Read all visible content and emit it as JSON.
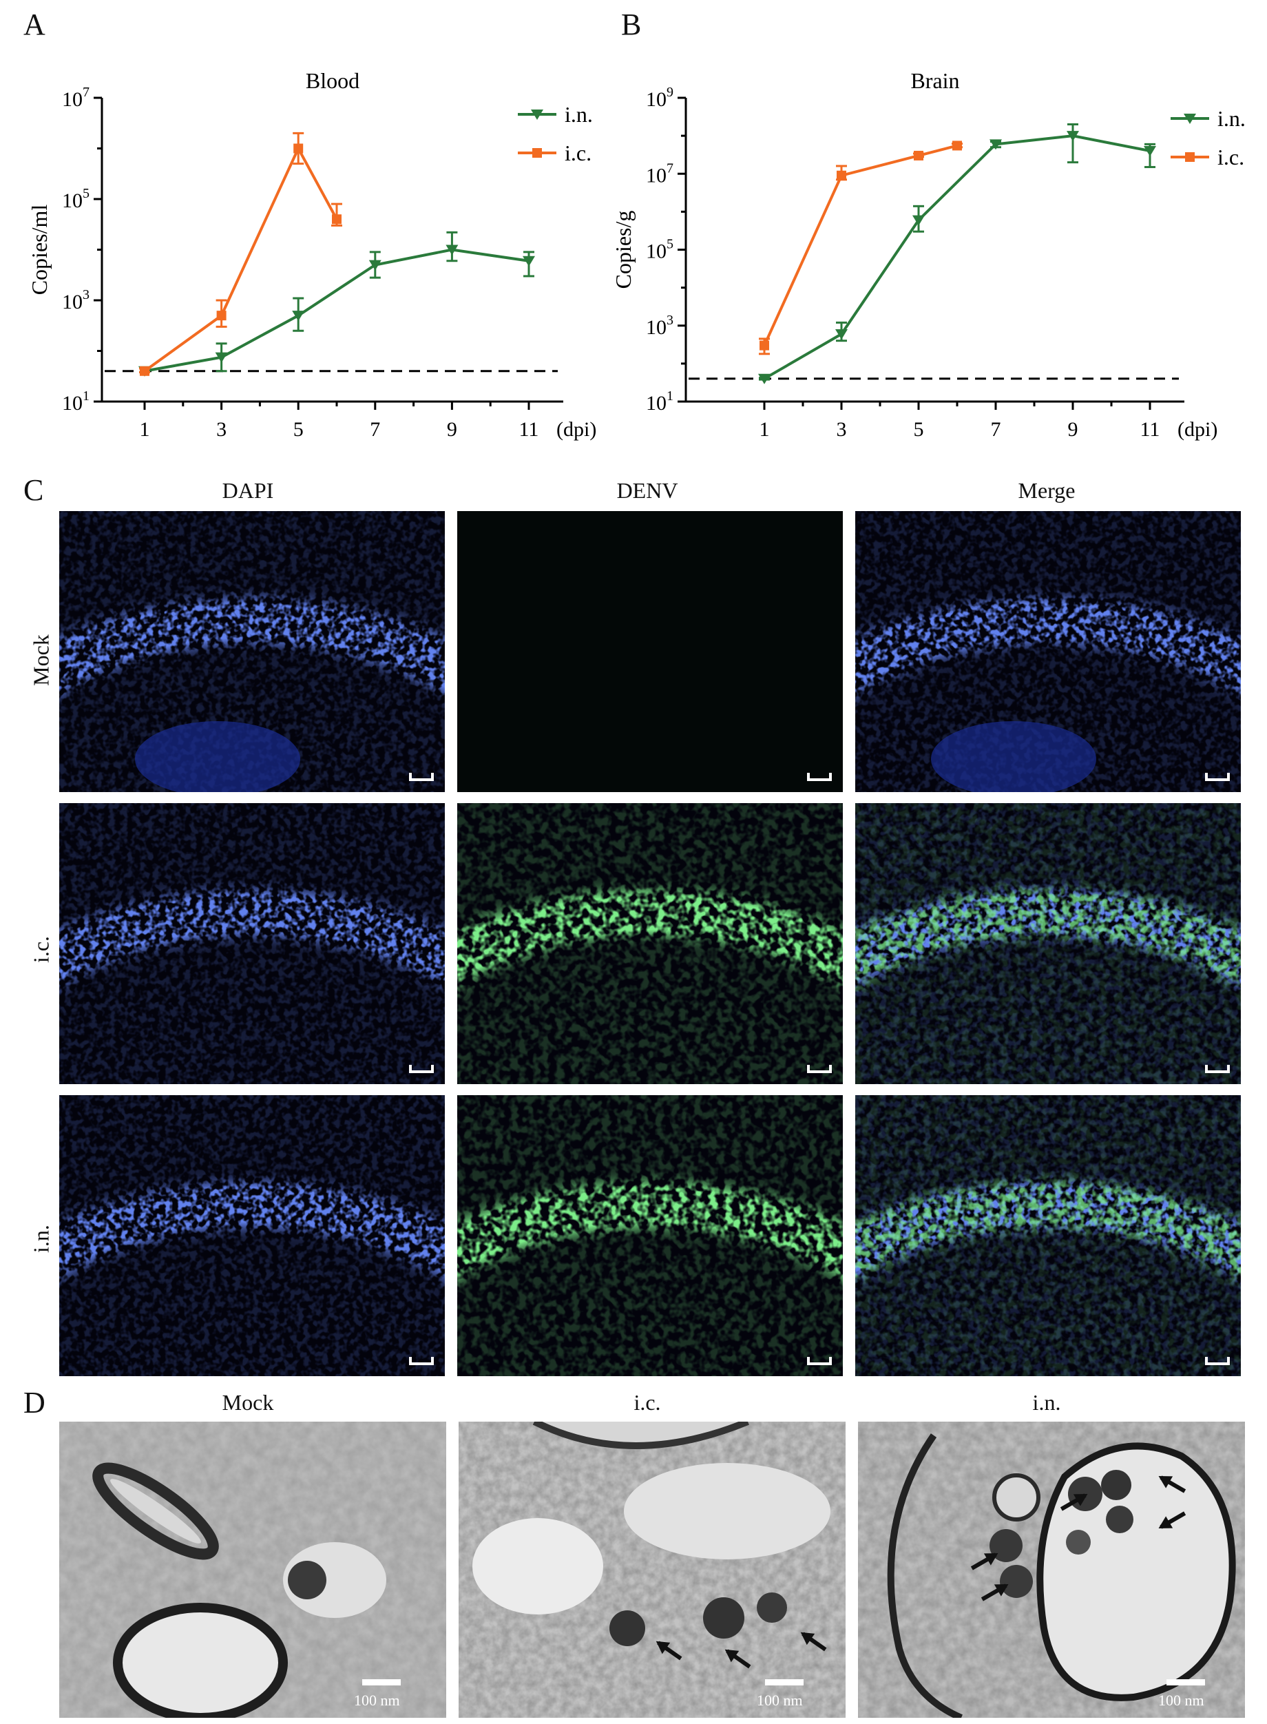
{
  "panels": {
    "A": "A",
    "B": "B",
    "C": "C",
    "D": "D"
  },
  "chart_data": [
    {
      "type": "line",
      "title": "Blood",
      "xlabel": "",
      "x_unit": "(dpi)",
      "ylabel": "Copies/ml",
      "yscale": "log",
      "ylim": [
        10,
        10000000
      ],
      "xticks": [
        "1",
        "3",
        "5",
        "7",
        "9",
        "11"
      ],
      "yticks": [
        {
          "base": "10",
          "exp": "1"
        },
        {
          "base": "10",
          "exp": "3"
        },
        {
          "base": "10",
          "exp": "5"
        },
        {
          "base": "10",
          "exp": "7"
        }
      ],
      "legend": "top-right",
      "detection_limit": 40,
      "series": [
        {
          "name": "i.n.",
          "color": "#2a7a3b",
          "marker": "triangle-down",
          "x": [
            1,
            3,
            5,
            7,
            9,
            11
          ],
          "y": [
            40,
            75,
            500,
            5000,
            10000,
            6000
          ],
          "err_up": [
            45,
            140,
            1100,
            9000,
            22000,
            9000
          ],
          "err_down": [
            38,
            40,
            250,
            2800,
            6000,
            3000
          ]
        },
        {
          "name": "i.c.",
          "color": "#f26b21",
          "marker": "square",
          "x": [
            1,
            3,
            5,
            6
          ],
          "y": [
            40,
            500,
            1000000,
            40000
          ],
          "err_up": [
            45,
            1000,
            2000000,
            80000
          ],
          "err_down": [
            38,
            300,
            500000,
            30000
          ]
        }
      ]
    },
    {
      "type": "line",
      "title": "Brain",
      "xlabel": "",
      "x_unit": "(dpi)",
      "ylabel": "Copies/g",
      "yscale": "log",
      "ylim": [
        10,
        1000000000
      ],
      "xticks": [
        "1",
        "3",
        "5",
        "7",
        "9",
        "11"
      ],
      "yticks": [
        {
          "base": "10",
          "exp": "1"
        },
        {
          "base": "10",
          "exp": "3"
        },
        {
          "base": "10",
          "exp": "5"
        },
        {
          "base": "10",
          "exp": "7"
        },
        {
          "base": "10",
          "exp": "9"
        }
      ],
      "legend": "top-right",
      "detection_limit": 40,
      "series": [
        {
          "name": "i.n.",
          "color": "#2a7a3b",
          "marker": "triangle-down",
          "x": [
            1,
            3,
            5,
            7,
            9,
            11
          ],
          "y": [
            40,
            600,
            600000,
            60000000,
            100000000,
            40000000
          ],
          "err_up": [
            42,
            1200,
            1400000,
            70000000,
            200000000,
            60000000
          ],
          "err_down": [
            38,
            400,
            300000,
            50000000,
            20000000,
            15000000
          ],
          "cap_mode": "bottom"
        },
        {
          "name": "i.c.",
          "color": "#f26b21",
          "marker": "square",
          "x": [
            1,
            3,
            5,
            6
          ],
          "y": [
            300,
            9000000,
            30000000,
            55000000
          ],
          "err_up": [
            450,
            16000000,
            34000000,
            62000000
          ],
          "err_down": [
            180,
            7000000,
            28000000,
            50000000
          ]
        }
      ]
    }
  ],
  "panel_c": {
    "columns": [
      "DAPI",
      "DENV",
      "Merge"
    ],
    "rows": [
      "Mock",
      "i.c.",
      "i.n."
    ]
  },
  "panel_d": {
    "columns": [
      "Mock",
      "i.c.",
      "i.n."
    ],
    "scale_label": "100 nm"
  }
}
